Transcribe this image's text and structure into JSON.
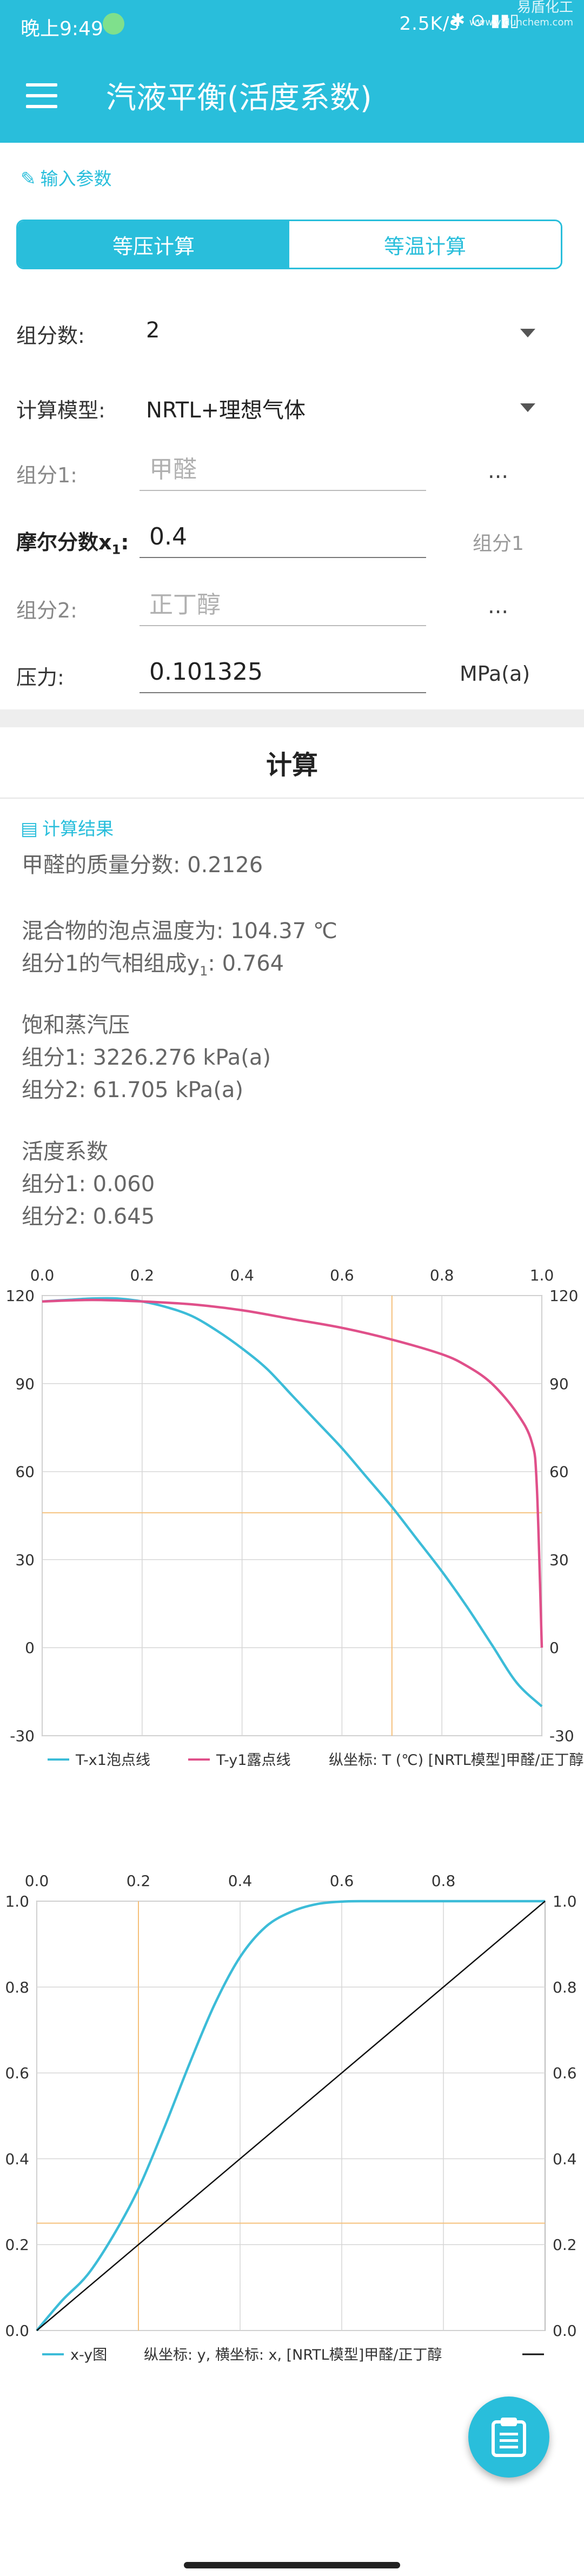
{
  "status": {
    "time": "晚上9:49",
    "speed": "2.5K/s",
    "watermark_1": "易盾化工",
    "watermark_2": "www.yidunchem.com"
  },
  "app": {
    "title": "汽液平衡(活度系数)"
  },
  "input_section": {
    "title": "输入参数"
  },
  "mode_tabs": [
    {
      "label": "等压计算",
      "active": true
    },
    {
      "label": "等温计算",
      "active": false
    }
  ],
  "form": {
    "components_label": "组分数:",
    "components_value": "2",
    "model_label": "计算模型:",
    "model_value": "NRTL+理想气体",
    "comp1_label": "组分1:",
    "comp1_placeholder": "甲醛",
    "molefrac_label_main": "摩尔分数x",
    "molefrac_label_sub": "1",
    "molefrac_label_colon": ":",
    "molefrac_value": "0.4",
    "molefrac_unit": "组分1",
    "comp2_label": "组分2:",
    "comp2_placeholder": "正丁醇",
    "pressure_label": "压力:",
    "pressure_value": "0.101325",
    "pressure_unit": "MPa(a)",
    "more_label": "..."
  },
  "calc_button": "计算",
  "result_section": {
    "title": "计算结果"
  },
  "results": {
    "mass_fraction": "甲醛的质量分数: 0.2126",
    "bubble_temp": "混合物的泡点温度为: 104.37 ℃",
    "vapor_comp_main": "组分1的气相组成y",
    "vapor_comp_sub": "1",
    "vapor_comp_value": ": 0.764",
    "sat_title": "饱和蒸汽压",
    "sat_1": "组分1: 3226.276 kPa(a)",
    "sat_2": "组分2: 61.705 kPa(a)",
    "act_title": "活度系数",
    "act_1": "组分1: 0.060",
    "act_2": "组分2: 0.645"
  },
  "colors": {
    "accent": "#29bedb",
    "bubble_line": "#3cbcd8",
    "dew_line": "#e0508a",
    "diagonal": "#111111",
    "guide": "#f5c07a"
  },
  "chart_data": [
    {
      "type": "line",
      "x_ticks": [
        "0.0",
        "0.2",
        "0.4",
        "0.6",
        "0.8",
        "1.0"
      ],
      "y_ticks": [
        "120",
        "90",
        "60",
        "30",
        "0",
        "-30"
      ],
      "xlim": [
        0,
        1
      ],
      "ylim": [
        -30,
        120
      ],
      "grid": true,
      "legend": "bottom",
      "legend_labels": [
        "T-x1泡点线",
        "T-y1露点线"
      ],
      "note": "纵坐标: T (℃) [NRTL模型]甲醛/正丁醇",
      "series": [
        {
          "name": "T-x1泡点线",
          "x": [
            0,
            0.05,
            0.1,
            0.15,
            0.2,
            0.25,
            0.3,
            0.35,
            0.4,
            0.45,
            0.5,
            0.55,
            0.6,
            0.65,
            0.7,
            0.75,
            0.8,
            0.85,
            0.9,
            0.95,
            1.0
          ],
          "y": [
            118,
            118.5,
            119,
            119,
            118,
            116,
            113,
            108,
            102,
            95,
            86,
            77,
            68,
            58,
            48,
            37,
            26,
            14,
            1,
            -12,
            -20
          ]
        },
        {
          "name": "T-y1露点线",
          "x": [
            0,
            0.1,
            0.2,
            0.3,
            0.4,
            0.5,
            0.6,
            0.7,
            0.8,
            0.85,
            0.9,
            0.95,
            0.98,
            0.99,
            1.0
          ],
          "y": [
            118,
            118.5,
            118,
            117,
            115,
            112,
            109,
            105,
            100,
            96,
            90,
            80,
            70,
            55,
            0
          ]
        }
      ],
      "guide": {
        "x": 0.7,
        "y": 46
      }
    },
    {
      "type": "line",
      "x_ticks": [
        "0.0",
        "0.2",
        "0.4",
        "0.6",
        "0.8"
      ],
      "y_ticks": [
        "1.0",
        "0.8",
        "0.6",
        "0.4",
        "0.2",
        "0.0"
      ],
      "xlim": [
        0,
        1
      ],
      "ylim": [
        0,
        1
      ],
      "grid": true,
      "legend": "bottom",
      "legend_labels": [
        "x-y图"
      ],
      "note": "纵坐标: y, 横坐标: x, [NRTL模型]甲醛/正丁醇",
      "series": [
        {
          "name": "x-y图",
          "x": [
            0,
            0.05,
            0.1,
            0.15,
            0.2,
            0.25,
            0.3,
            0.35,
            0.4,
            0.45,
            0.5,
            0.55,
            0.6,
            0.65,
            0.7,
            0.8,
            0.9,
            1.0
          ],
          "y": [
            0,
            0.07,
            0.13,
            0.22,
            0.33,
            0.47,
            0.62,
            0.76,
            0.87,
            0.94,
            0.975,
            0.993,
            0.999,
            1.0,
            1.0,
            1.0,
            1.0,
            1.0
          ]
        },
        {
          "x": [
            0,
            1
          ],
          "y": [
            0,
            1
          ]
        }
      ],
      "guide": {
        "x": 0.2,
        "y": 0.25
      }
    }
  ]
}
